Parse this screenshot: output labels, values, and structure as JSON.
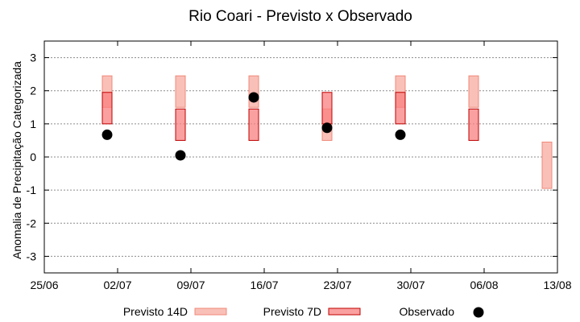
{
  "chart_data": {
    "type": "range-bar-scatter",
    "title": "Rio Coari - Previsto x Observado",
    "ylabel": "Anomalia de Precipitação Categorizada",
    "xlabel": "",
    "x_ticks": [
      "25/06",
      "02/07",
      "09/07",
      "16/07",
      "23/07",
      "30/07",
      "06/08",
      "13/08"
    ],
    "xlim": [
      "2024-06-25",
      "2024-08-13"
    ],
    "y_ticks": [
      "3",
      "2",
      "1",
      "0",
      "-1",
      "-2",
      "-3"
    ],
    "ylim": [
      -3.5,
      3.5
    ],
    "grid": true,
    "legend_position": "bottom",
    "series": [
      {
        "name": "Previsto 14D",
        "color": "#f9c0b8",
        "edge": "#f08878",
        "bars": [
          {
            "date": "2024-07-01",
            "low": 1.5,
            "high": 2.45
          },
          {
            "date": "2024-07-08",
            "low": 1.5,
            "high": 2.45
          },
          {
            "date": "2024-07-15",
            "low": 1.5,
            "high": 2.45
          },
          {
            "date": "2024-07-22",
            "low": 0.5,
            "high": 1.45
          },
          {
            "date": "2024-07-29",
            "low": 1.5,
            "high": 2.45
          },
          {
            "date": "2024-08-05",
            "low": 1.5,
            "high": 2.45
          },
          {
            "date": "2024-08-12",
            "low": -0.95,
            "high": 0.45
          }
        ]
      },
      {
        "name": "Previsto 7D",
        "color": "#f88080",
        "edge": "#c00000",
        "bars": [
          {
            "date": "2024-07-01",
            "low": 1.0,
            "high": 1.95
          },
          {
            "date": "2024-07-08",
            "low": 0.5,
            "high": 1.45
          },
          {
            "date": "2024-07-15",
            "low": 0.5,
            "high": 1.45
          },
          {
            "date": "2024-07-22",
            "low": 1.0,
            "high": 1.95
          },
          {
            "date": "2024-07-29",
            "low": 1.0,
            "high": 1.95
          },
          {
            "date": "2024-08-05",
            "low": 0.5,
            "high": 1.45
          }
        ]
      },
      {
        "name": "Observado",
        "color": "#000000",
        "points": [
          {
            "date": "2024-07-01",
            "value": 0.67
          },
          {
            "date": "2024-07-08",
            "value": 0.05
          },
          {
            "date": "2024-07-15",
            "value": 1.8
          },
          {
            "date": "2024-07-22",
            "value": 0.88
          },
          {
            "date": "2024-07-29",
            "value": 0.67
          }
        ]
      }
    ]
  }
}
